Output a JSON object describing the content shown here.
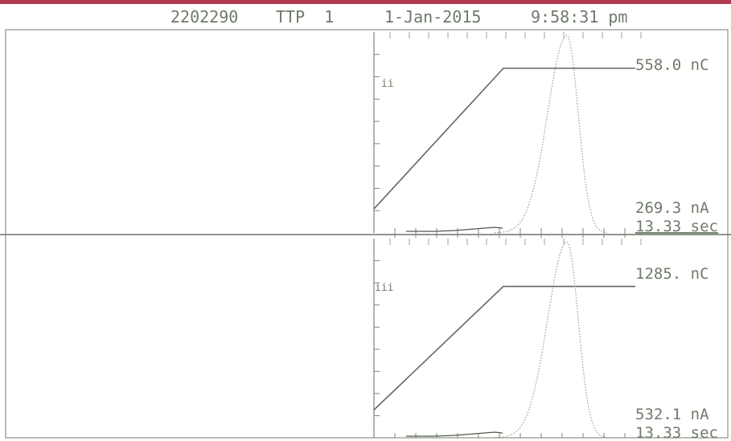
{
  "header": {
    "serial": "2202290",
    "mode": "TTP  1",
    "date": "1-Jan-2015",
    "time": "9:58:31 pm"
  },
  "colors": {
    "top_bar": "#b13a4e",
    "trace": "#6f7b69",
    "frame": "#8a9486"
  },
  "chart_data": [
    {
      "type": "line",
      "channel_label": "ii",
      "charge_label": "558.0 nC",
      "current_label": "269.3 nA",
      "time_label": "13.33 sec",
      "charge_ramp": {
        "start": 0.12,
        "plateau_start": 0.66,
        "level": 0.82
      },
      "current_peak": {
        "position": 0.64,
        "height": 1.0
      }
    },
    {
      "type": "line",
      "channel_label": "iii",
      "charge_label": "1285. nC",
      "current_label": "532.1 nA",
      "time_label": "13.33 sec",
      "charge_ramp": {
        "start": 0.14,
        "plateau_start": 0.66,
        "level": 0.76
      },
      "current_peak": {
        "position": 0.66,
        "height": 1.0
      }
    }
  ]
}
